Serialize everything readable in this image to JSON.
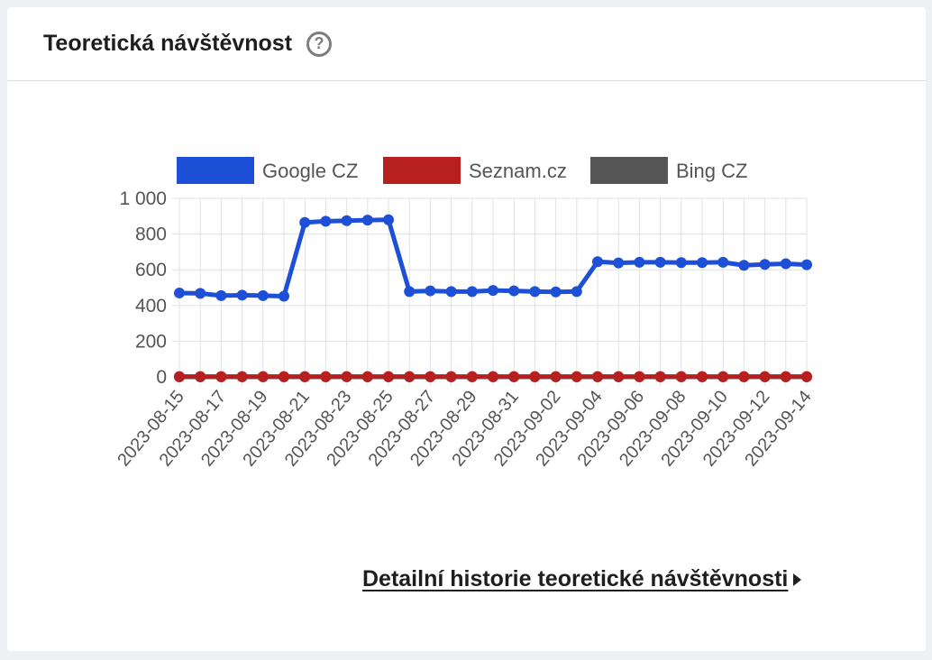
{
  "card": {
    "title": "Teoretická návštěvnost",
    "help_glyph": "?",
    "link_label": "Detailní historie teoretické návštěvnosti"
  },
  "chart_data": {
    "type": "line",
    "x": [
      "2023-08-15",
      "2023-08-16",
      "2023-08-17",
      "2023-08-18",
      "2023-08-19",
      "2023-08-20",
      "2023-08-21",
      "2023-08-22",
      "2023-08-23",
      "2023-08-24",
      "2023-08-25",
      "2023-08-26",
      "2023-08-27",
      "2023-08-28",
      "2023-08-29",
      "2023-08-30",
      "2023-08-31",
      "2023-09-01",
      "2023-09-02",
      "2023-09-03",
      "2023-09-04",
      "2023-09-05",
      "2023-09-06",
      "2023-09-07",
      "2023-09-08",
      "2023-09-09",
      "2023-09-10",
      "2023-09-11",
      "2023-09-12",
      "2023-09-13",
      "2023-09-14"
    ],
    "xticks": [
      "2023-08-15",
      "2023-08-17",
      "2023-08-19",
      "2023-08-21",
      "2023-08-23",
      "2023-08-25",
      "2023-08-27",
      "2023-08-29",
      "2023-08-31",
      "2023-09-02",
      "2023-09-04",
      "2023-09-06",
      "2023-09-08",
      "2023-09-10",
      "2023-09-12",
      "2023-09-14"
    ],
    "yticks": [
      "1 000",
      "800",
      "600",
      "400",
      "200",
      "0"
    ],
    "ylim": [
      0,
      1000
    ],
    "grid": true,
    "legend_position": "top",
    "series": [
      {
        "name": "Google CZ",
        "color": "#1d4fd7",
        "values": [
          470,
          468,
          455,
          458,
          455,
          452,
          865,
          872,
          875,
          878,
          880,
          478,
          482,
          478,
          478,
          484,
          482,
          478,
          476,
          478,
          645,
          638,
          642,
          642,
          640,
          640,
          642,
          625,
          630,
          634,
          628
        ]
      },
      {
        "name": "Seznam.cz",
        "color": "#b8201f",
        "values": [
          2,
          2,
          2,
          2,
          2,
          2,
          2,
          2,
          2,
          2,
          2,
          2,
          2,
          2,
          2,
          2,
          2,
          2,
          2,
          2,
          2,
          2,
          2,
          2,
          2,
          2,
          2,
          2,
          2,
          2,
          2
        ]
      },
      {
        "name": "Bing CZ",
        "color": "#555555",
        "values": [
          0,
          0,
          0,
          0,
          0,
          0,
          0,
          0,
          0,
          0,
          0,
          0,
          0,
          0,
          0,
          0,
          0,
          0,
          0,
          0,
          0,
          0,
          0,
          0,
          0,
          0,
          0,
          0,
          0,
          0,
          0
        ]
      }
    ]
  }
}
